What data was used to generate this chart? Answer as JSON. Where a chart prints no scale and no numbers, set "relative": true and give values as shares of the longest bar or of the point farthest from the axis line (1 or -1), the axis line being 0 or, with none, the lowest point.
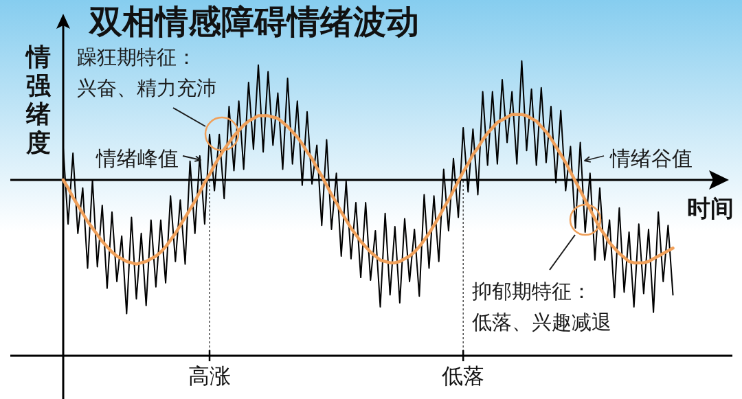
{
  "chart_data": {
    "type": "line",
    "title": "双相情感障碍情绪波动",
    "xlabel": "时间",
    "ylabel": "情强绪度",
    "relative": true,
    "grid": "x",
    "tick_labels": "x",
    "categories": [
      null,
      null,
      null,
      null,
      null,
      null,
      null,
      null,
      null,
      null,
      null,
      null,
      null,
      null,
      null,
      null,
      null,
      null,
      null,
      null,
      null,
      null,
      null,
      null,
      null,
      null,
      null,
      null,
      null,
      null,
      "高涨",
      null,
      null,
      null,
      null,
      null,
      null,
      null,
      null,
      null,
      null,
      null,
      null,
      null,
      null,
      null,
      null,
      null,
      null,
      null,
      null,
      null,
      null,
      null,
      null,
      null,
      null,
      null,
      null,
      null,
      null,
      null,
      null,
      null,
      null,
      null,
      null,
      null,
      null,
      null,
      null,
      null,
      null,
      null,
      null,
      null,
      null,
      null,
      null,
      null,
      null,
      null,
      "低落",
      null,
      null,
      null,
      null,
      null,
      null,
      null,
      null,
      null,
      null,
      null,
      null,
      null,
      null,
      null,
      null,
      null,
      null,
      null,
      null,
      null,
      null,
      null,
      null,
      null,
      null,
      null,
      null,
      null,
      null,
      null,
      null,
      null,
      null,
      null,
      null,
      null,
      null,
      null,
      null,
      null,
      null,
      null
    ],
    "series": [
      {
        "color": "#000000",
        "values": [
          0.24,
          -0.33,
          0.2,
          -0.4,
          -0.06,
          -0.66,
          0.0,
          -0.65,
          -0.19,
          -0.81,
          -0.24,
          -0.76,
          -0.42,
          -1.0,
          -0.28,
          -0.89,
          -0.4,
          -0.94,
          -0.3,
          -0.8,
          -0.3,
          -0.77,
          -0.12,
          -0.61,
          -0.15,
          -0.63,
          0.14,
          -0.4,
          0.18,
          -0.33,
          0.34,
          -0.08,
          0.34,
          -0.14,
          0.55,
          0.07,
          0.59,
          0.08,
          0.73,
          0.23,
          0.86,
          0.21,
          0.81,
          0.26,
          0.65,
          0.08,
          0.76,
          0.12,
          0.59,
          -0.04,
          0.51,
          -0.03,
          0.26,
          -0.34,
          0.3,
          -0.37,
          0.05,
          -0.57,
          -0.01,
          -0.59,
          -0.17,
          -0.73,
          -0.17,
          -0.75,
          -0.38,
          -0.95,
          -0.25,
          -0.86,
          -0.35,
          -0.92,
          -0.29,
          -0.76,
          -0.37,
          -0.87,
          -0.11,
          -0.66,
          -0.12,
          -0.61,
          0.08,
          -0.38,
          0.16,
          -0.28,
          0.39,
          -0.09,
          0.38,
          -0.11,
          0.66,
          0.11,
          0.66,
          0.12,
          0.75,
          0.28,
          0.66,
          0.12,
          0.89,
          0.22,
          0.68,
          0.11,
          0.69,
          0.13,
          0.55,
          -0.02,
          0.52,
          -0.08,
          0.25,
          -0.36,
          0.28,
          -0.39,
          0.05,
          -0.6,
          -0.06,
          -0.6,
          -0.3,
          -0.88,
          -0.21,
          -0.84,
          -0.39,
          -0.95,
          -0.33,
          -0.85,
          -0.37,
          -0.99,
          -0.24,
          -0.76,
          -0.34,
          -0.86
        ]
      },
      {
        "color": "#f0a05a",
        "values": [
          0.0,
          -0.06,
          -0.13,
          -0.19,
          -0.25,
          -0.31,
          -0.36,
          -0.41,
          -0.46,
          -0.5,
          -0.54,
          -0.57,
          -0.59,
          -0.61,
          -0.62,
          -0.63,
          -0.62,
          -0.61,
          -0.59,
          -0.57,
          -0.54,
          -0.5,
          -0.45,
          -0.4,
          -0.34,
          -0.28,
          -0.22,
          -0.16,
          -0.09,
          -0.02,
          0.04,
          0.11,
          0.17,
          0.23,
          0.28,
          0.33,
          0.37,
          0.41,
          0.44,
          0.46,
          0.48,
          0.48,
          0.48,
          0.47,
          0.46,
          0.43,
          0.4,
          0.36,
          0.32,
          0.27,
          0.21,
          0.16,
          0.09,
          0.03,
          -0.04,
          -0.11,
          -0.17,
          -0.24,
          -0.3,
          -0.36,
          -0.41,
          -0.46,
          -0.5,
          -0.54,
          -0.57,
          -0.6,
          -0.61,
          -0.62,
          -0.62,
          -0.61,
          -0.59,
          -0.57,
          -0.54,
          -0.5,
          -0.45,
          -0.4,
          -0.34,
          -0.28,
          -0.21,
          -0.15,
          -0.08,
          -0.01,
          0.06,
          0.12,
          0.19,
          0.24,
          0.3,
          0.35,
          0.39,
          0.43,
          0.45,
          0.47,
          0.49,
          0.49,
          0.49,
          0.48,
          0.46,
          0.44,
          0.4,
          0.36,
          0.31,
          0.25,
          0.19,
          0.13,
          0.06,
          -0.01,
          -0.08,
          -0.15,
          -0.22,
          -0.29,
          -0.36,
          -0.41,
          -0.47,
          -0.51,
          -0.55,
          -0.58,
          -0.61,
          -0.62,
          -0.62,
          -0.62,
          -0.61,
          -0.59,
          -0.57,
          -0.55,
          -0.53,
          -0.51
        ]
      }
    ],
    "annotations": [
      "躁狂期特征：",
      "兴奋、精力充沛",
      "情绪峰值",
      "情绪谷值",
      "抑郁期特征：",
      "低落、兴趣减退"
    ]
  }
}
